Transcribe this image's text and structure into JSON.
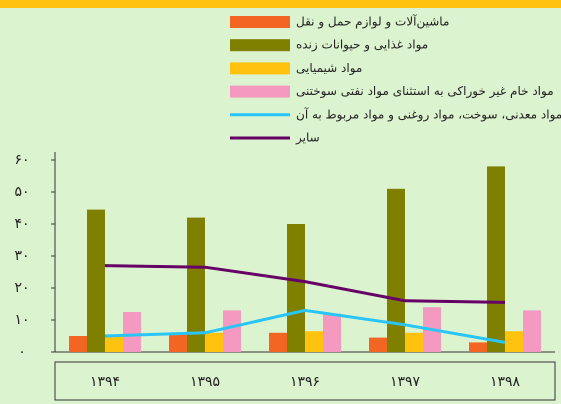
{
  "chart_data": {
    "type": "bar",
    "categories": [
      "۱۳۹۴",
      "۱۳۹۵",
      "۱۳۹۶",
      "۱۳۹۷",
      "۱۳۹۸"
    ],
    "series": [
      {
        "name": "ماشین‌آلات و لوازم حمل و نقل",
        "color": "#f26522",
        "type": "bar",
        "values": [
          5,
          5.5,
          6,
          4.5,
          3
        ]
      },
      {
        "name": "مواد غذایی و حیوانات زنده",
        "color": "#808000",
        "type": "bar",
        "values": [
          44.5,
          42,
          40,
          51,
          58
        ]
      },
      {
        "name": "مواد شیمیایی",
        "color": "#ffc20e",
        "type": "bar",
        "values": [
          5,
          6,
          6.5,
          6,
          6.5
        ]
      },
      {
        "name": "مواد خام غیر خوراکی به استثنای مواد نفتی سوختنی",
        "color": "#f49ac1",
        "type": "bar",
        "values": [
          12.5,
          13,
          12,
          14,
          13
        ]
      },
      {
        "name": "مواد معدنی، سوخت، مواد روغنی و مواد مربوط به آن",
        "color": "#29c5f6",
        "type": "line",
        "values": [
          5,
          6,
          13,
          8.5,
          3
        ]
      },
      {
        "name": "سایر",
        "color": "#660066",
        "type": "line",
        "values": [
          27,
          26.5,
          22,
          16,
          15.5
        ]
      }
    ],
    "ylim": [
      0,
      60
    ],
    "yticks": [
      {
        "value": 0,
        "label": "۰"
      },
      {
        "value": 10,
        "label": "۱۰"
      },
      {
        "value": 20,
        "label": "۲۰"
      },
      {
        "value": 30,
        "label": "۳۰"
      },
      {
        "value": 40,
        "label": "۴۰"
      },
      {
        "value": 50,
        "label": "۵۰"
      },
      {
        "value": 60,
        "label": "۶۰"
      }
    ]
  }
}
